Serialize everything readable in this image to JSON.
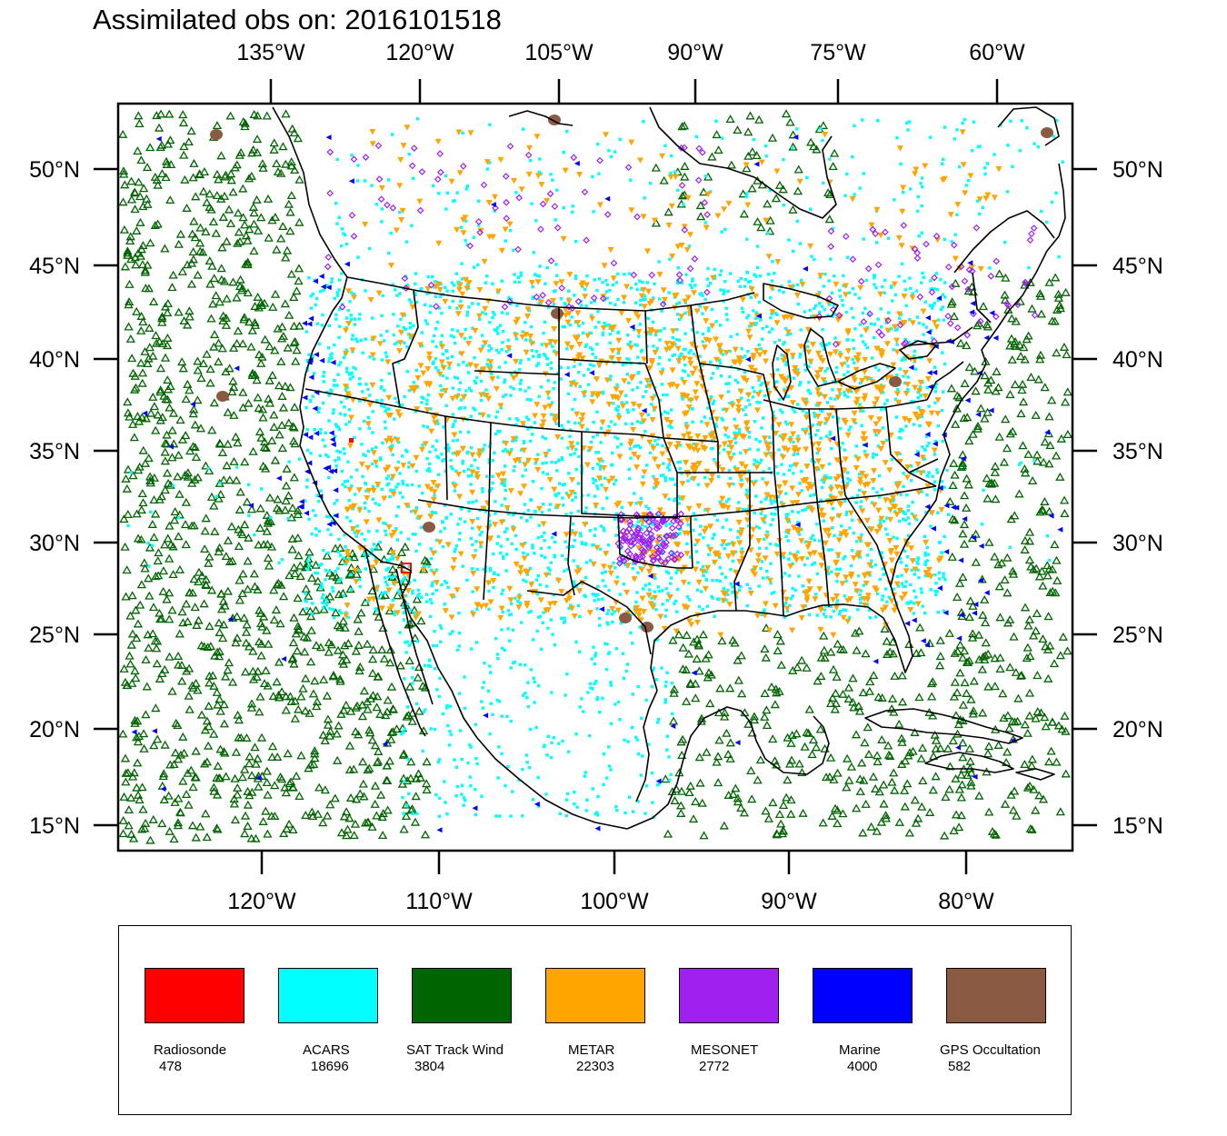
{
  "title": "Assimilated obs on: 2016101518",
  "axes": {
    "top_lon_labels": [
      "135°W",
      "120°W",
      "105°W",
      "90°W",
      "75°W",
      "60°W"
    ],
    "bottom_lon_labels": [
      "120°W",
      "110°W",
      "100°W",
      "90°W",
      "80°W"
    ],
    "lat_labels": [
      "50°N",
      "45°N",
      "40°N",
      "35°N",
      "30°N",
      "25°N",
      "20°N",
      "15°N"
    ]
  },
  "legend": [
    {
      "name": "Radiosonde",
      "count": "478",
      "color": "#ff0000"
    },
    {
      "name": "ACARS",
      "count": "18696",
      "color": "#00ffff"
    },
    {
      "name": "SAT Track Wind",
      "count": "3804",
      "color": "#006400"
    },
    {
      "name": "METAR",
      "count": "22303",
      "color": "#ffa500"
    },
    {
      "name": "MESONET",
      "count": "2772",
      "color": "#a020f0"
    },
    {
      "name": "Marine",
      "count": "4000",
      "color": "#0000ff"
    },
    {
      "name": "GPS Occultation",
      "count": "582",
      "color": "#8b5a42"
    }
  ]
}
